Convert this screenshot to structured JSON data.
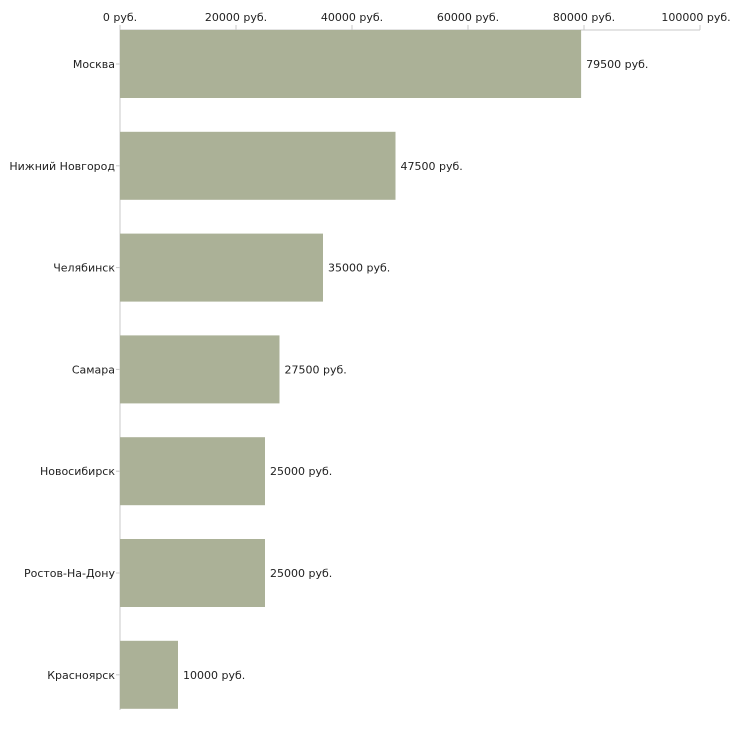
{
  "chart_data": {
    "type": "bar",
    "orientation": "horizontal",
    "title": "",
    "xlabel": "",
    "ylabel": "",
    "categories": [
      "Москва",
      "Нижний Новгород",
      "Челябинск",
      "Самара",
      "Новосибирск",
      "Ростов-На-Дону",
      "Красноярск"
    ],
    "values": [
      79500,
      47500,
      35000,
      27500,
      25000,
      25000,
      10000
    ],
    "data_labels": [
      "79500 руб.",
      "47500 руб.",
      "35000 руб.",
      "27500 руб.",
      "25000 руб.",
      "25000 руб.",
      "10000 руб."
    ],
    "xlim": [
      0,
      100000
    ],
    "x_ticks": [
      0,
      20000,
      40000,
      60000,
      80000,
      100000
    ],
    "x_tick_labels": [
      "0 руб.",
      "20000 руб.",
      "40000 руб.",
      "60000 руб.",
      "80000 руб.",
      "100000 руб."
    ],
    "axis_position": "top",
    "grid": false,
    "bar_color": "#abb197"
  }
}
